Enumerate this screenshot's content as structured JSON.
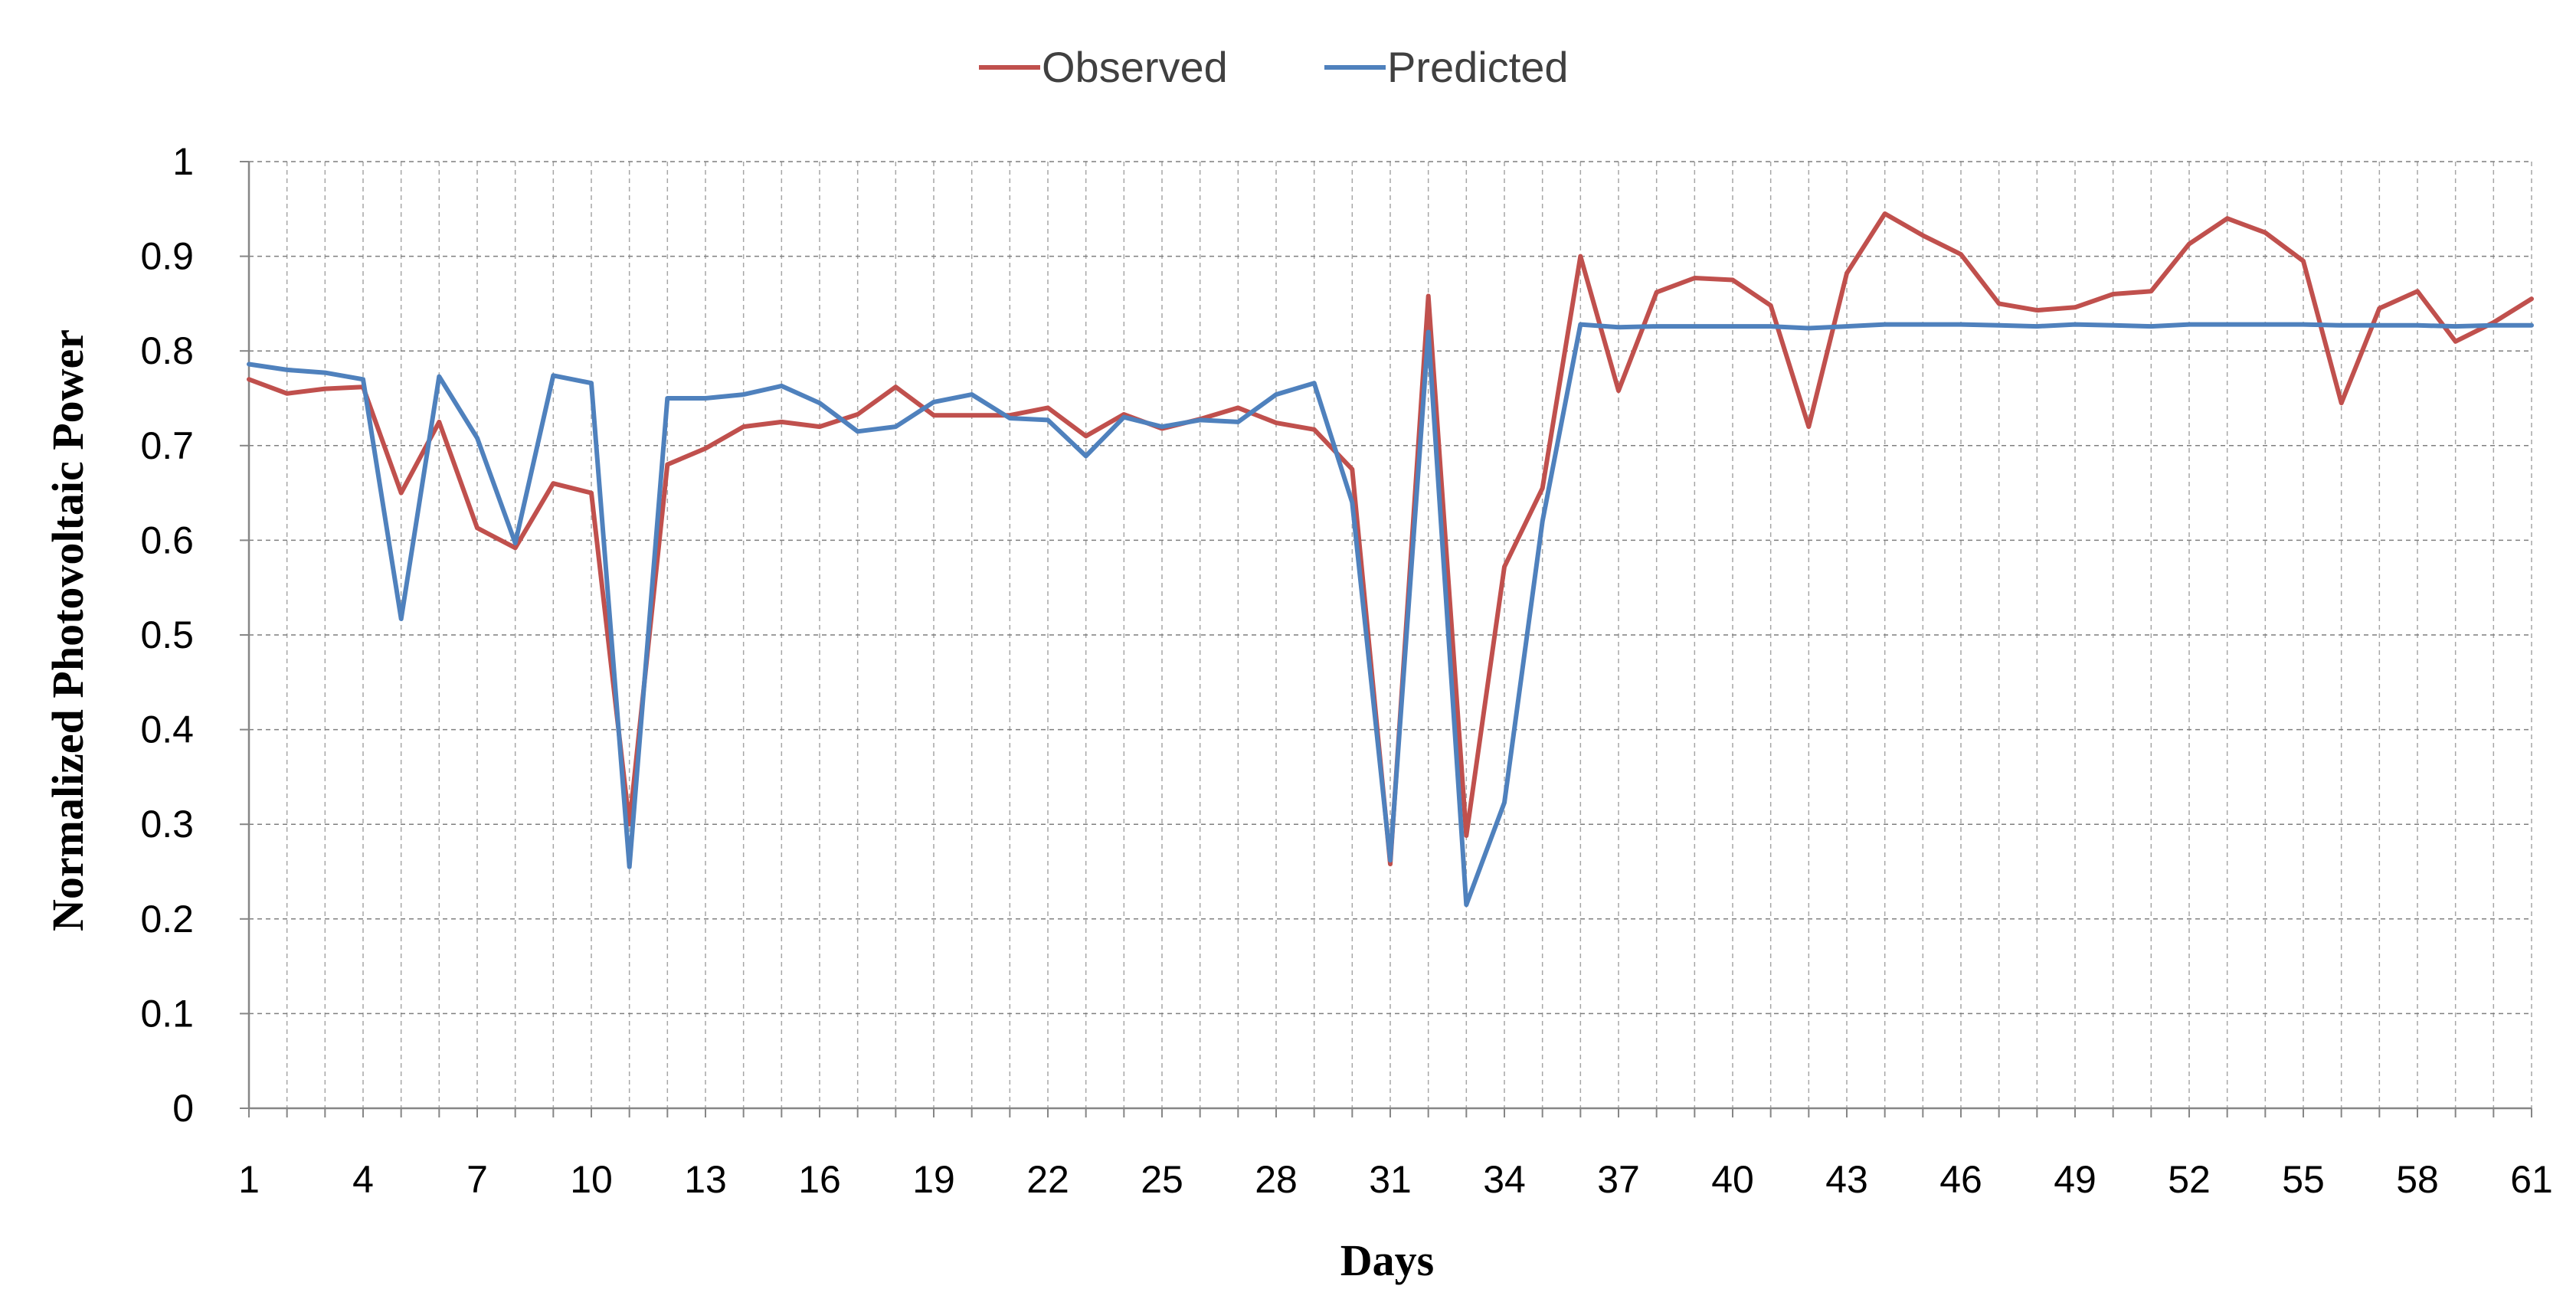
{
  "chart_data": {
    "type": "line",
    "title": "",
    "xlabel": "Days",
    "ylabel": "Normalized Photovoltaic Power",
    "ylim": [
      0,
      1
    ],
    "xlim": [
      1,
      61
    ],
    "yticks": [
      "0",
      "0.1",
      "0.2",
      "0.3",
      "0.4",
      "0.5",
      "0.6",
      "0.7",
      "0.8",
      "0.9",
      "1"
    ],
    "xticks": [
      "1",
      "4",
      "7",
      "10",
      "13",
      "16",
      "19",
      "22",
      "25",
      "28",
      "31",
      "34",
      "37",
      "40",
      "43",
      "46",
      "49",
      "52",
      "55",
      "58",
      "61"
    ],
    "grid": true,
    "legend_position": "top-center",
    "x": [
      1,
      2,
      3,
      4,
      5,
      6,
      7,
      8,
      9,
      10,
      11,
      12,
      13,
      14,
      15,
      16,
      17,
      18,
      19,
      20,
      21,
      22,
      23,
      24,
      25,
      26,
      27,
      28,
      29,
      30,
      31,
      32,
      33,
      34,
      35,
      36,
      37,
      38,
      39,
      40,
      41,
      42,
      43,
      44,
      45,
      46,
      47,
      48,
      49,
      50,
      51,
      52,
      53,
      54,
      55,
      56,
      57,
      58,
      59,
      60,
      61
    ],
    "series": [
      {
        "name": "Observed",
        "color": "#c0504d",
        "values": [
          0.77,
          0.755,
          0.76,
          0.762,
          0.65,
          0.725,
          0.613,
          0.592,
          0.66,
          0.65,
          0.3,
          0.68,
          0.697,
          0.72,
          0.725,
          0.72,
          0.733,
          0.762,
          0.732,
          0.732,
          0.732,
          0.74,
          0.71,
          0.733,
          0.718,
          0.728,
          0.74,
          0.724,
          0.717,
          0.675,
          0.258,
          0.858,
          0.288,
          0.572,
          0.655,
          0.9,
          0.758,
          0.862,
          0.877,
          0.875,
          0.848,
          0.72,
          0.882,
          0.945,
          0.922,
          0.902,
          0.85,
          0.843,
          0.846,
          0.86,
          0.863,
          0.913,
          0.94,
          0.925,
          0.895,
          0.745,
          0.845,
          0.863,
          0.81,
          0.83,
          0.855
        ]
      },
      {
        "name": "Predicted",
        "color": "#4f81bd",
        "values": [
          0.786,
          0.78,
          0.777,
          0.77,
          0.517,
          0.773,
          0.708,
          0.597,
          0.774,
          0.766,
          0.255,
          0.75,
          0.75,
          0.754,
          0.763,
          0.745,
          0.715,
          0.72,
          0.746,
          0.754,
          0.729,
          0.727,
          0.689,
          0.73,
          0.72,
          0.727,
          0.725,
          0.754,
          0.766,
          0.64,
          0.262,
          0.82,
          0.215,
          0.323,
          0.62,
          0.828,
          0.825,
          0.826,
          0.826,
          0.826,
          0.826,
          0.824,
          0.826,
          0.828,
          0.828,
          0.828,
          0.827,
          0.826,
          0.828,
          0.827,
          0.826,
          0.828,
          0.828,
          0.828,
          0.828,
          0.827,
          0.827,
          0.827,
          0.826,
          0.827,
          0.827
        ]
      }
    ]
  }
}
